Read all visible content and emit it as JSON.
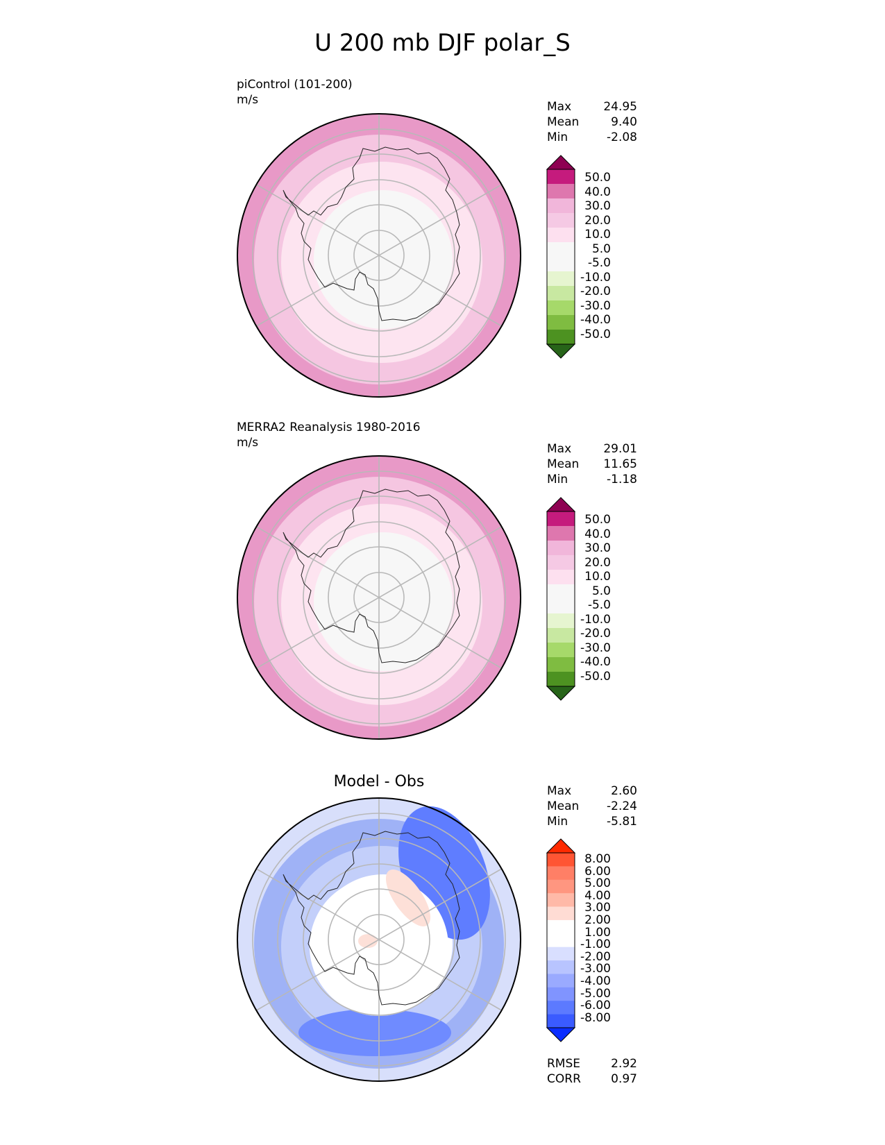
{
  "title": "U 200 mb DJF polar_S",
  "panels": [
    {
      "title": "piControl (101-200)",
      "units": "m/s",
      "stats": [
        {
          "label": "Max",
          "value": "24.95"
        },
        {
          "label": "Mean",
          "value": "9.40"
        },
        {
          "label": "Min",
          "value": "-2.08"
        }
      ],
      "colorbar": {
        "colors": [
          "#8e0152",
          "#c51b7d",
          "#de77ae",
          "#f1b6da",
          "#f5c9e4",
          "#fde0ef",
          "#f7f7f7",
          "#f7f7f7",
          "#e6f5d0",
          "#c8e8a1",
          "#a6d96a",
          "#7fbc41",
          "#4d9221",
          "#276419"
        ],
        "levels": [
          "50.0",
          "40.0",
          "30.0",
          "20.0",
          "10.0",
          "5.0",
          "-5.0",
          "-10.0",
          "-20.0",
          "-30.0",
          "-40.0",
          "-50.0"
        ]
      },
      "map_rings": [
        "#e899c7",
        "#f5c6e1",
        "#fde4f0",
        "#f7f7f7"
      ]
    },
    {
      "title": "MERRA2 Reanalysis 1980-2016",
      "units": "m/s",
      "stats": [
        {
          "label": "Max",
          "value": "29.01"
        },
        {
          "label": "Mean",
          "value": "11.65"
        },
        {
          "label": "Min",
          "value": "-1.18"
        }
      ],
      "colorbar": {
        "colors": [
          "#8e0152",
          "#c51b7d",
          "#de77ae",
          "#f1b6da",
          "#f5c9e4",
          "#fde0ef",
          "#f7f7f7",
          "#f7f7f7",
          "#e6f5d0",
          "#c8e8a1",
          "#a6d96a",
          "#7fbc41",
          "#4d9221",
          "#276419"
        ],
        "levels": [
          "50.0",
          "40.0",
          "30.0",
          "20.0",
          "10.0",
          "5.0",
          "-5.0",
          "-10.0",
          "-20.0",
          "-30.0",
          "-40.0",
          "-50.0"
        ]
      },
      "map_rings": [
        "#e899c7",
        "#f5c6e1",
        "#fde4f0",
        "#f7f7f7"
      ]
    },
    {
      "title": "Model - Obs",
      "units": "",
      "stats": [
        {
          "label": "Max",
          "value": "2.60"
        },
        {
          "label": "Mean",
          "value": "-2.24"
        },
        {
          "label": "Min",
          "value": "-5.81"
        }
      ],
      "colorbar": {
        "colors": [
          "#ff2a00",
          "#ff5533",
          "#ff7f66",
          "#ff9680",
          "#ffb9a8",
          "#ffdcd4",
          "#ffffff",
          "#ffffff",
          "#d9dfff",
          "#b8c4ff",
          "#9aaaff",
          "#8094ff",
          "#5c7aff",
          "#3a5bff",
          "#0a2dff"
        ],
        "levels": [
          "8.00",
          "6.00",
          "5.00",
          "4.00",
          "3.00",
          "2.00",
          "1.00",
          "-1.00",
          "-2.00",
          "-3.00",
          "-4.00",
          "-5.00",
          "-6.00",
          "-8.00"
        ]
      },
      "map_rings": [
        "#d8dffb",
        "#9fb2f6",
        "#c3cffa",
        "#ffffff"
      ],
      "extra_stats": [
        {
          "label": "RMSE",
          "value": "2.92"
        },
        {
          "label": "CORR",
          "value": "0.97"
        }
      ]
    }
  ]
}
